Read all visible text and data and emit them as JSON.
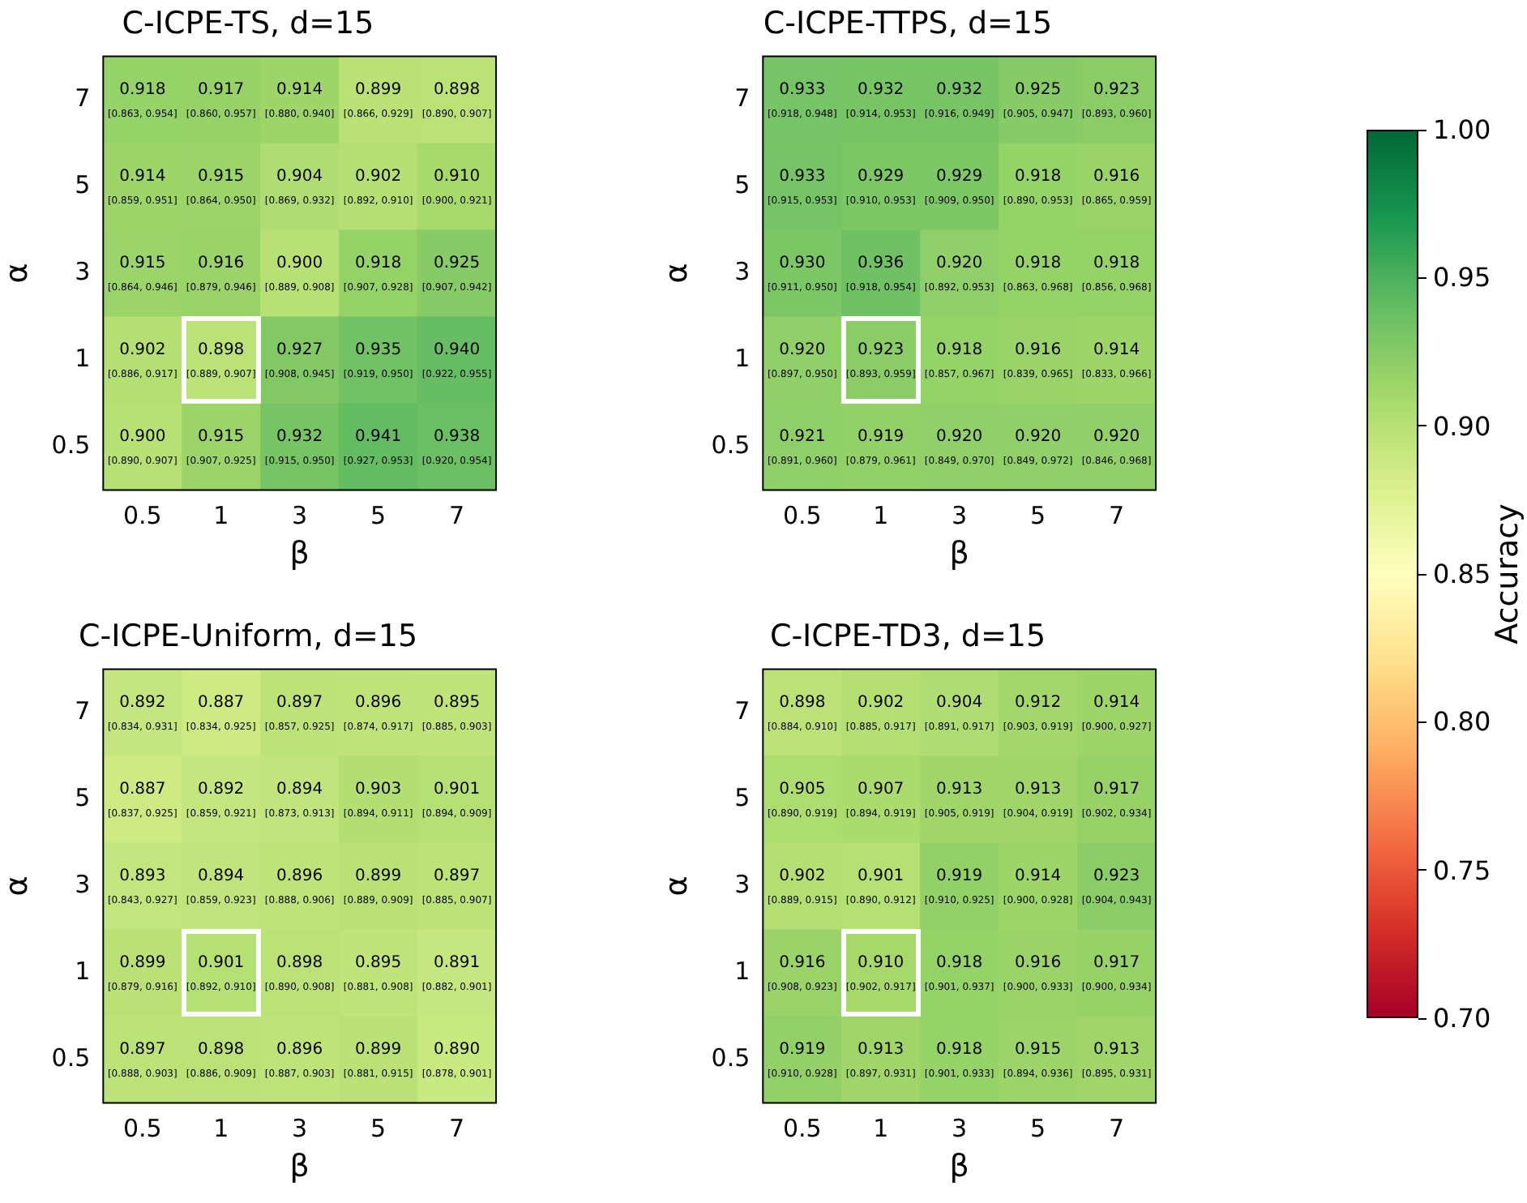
{
  "chart_data": [
    {
      "type": "heatmap",
      "title": "C-ICPE-TS, d=15",
      "xlabel": "β",
      "ylabel": "α",
      "categories": [
        "0.5",
        "1",
        "3",
        "5",
        "7"
      ],
      "y_categories": [
        "7",
        "5",
        "3",
        "1",
        "0.5"
      ],
      "clim": [
        0.7,
        1.0
      ],
      "cticks": [
        {
          "value": 0.7,
          "label": "0.70"
        },
        0.75,
        {
          "value": 0.8,
          "label": "0.80"
        },
        0.85,
        {
          "value": 0.9,
          "label": "0.90"
        },
        0.95,
        {
          "value": 1.0,
          "label": "1.00"
        }
      ],
      "clabel": "Accuracy",
      "cells": [
        [
          0.918,
          0.917,
          0.914,
          0.899,
          0.898
        ],
        [
          0.914,
          0.915,
          0.904,
          0.902,
          0.91
        ],
        [
          0.915,
          0.916,
          0.9,
          0.918,
          0.925
        ],
        [
          0.902,
          0.898,
          0.927,
          0.935,
          0.94
        ],
        [
          0.9,
          0.915,
          0.932,
          0.941,
          0.938
        ]
      ],
      "cell_labels": [
        [
          "0.918",
          "0.917",
          "0.914",
          "0.899",
          "0.898"
        ],
        [
          "0.914",
          "0.915",
          "0.904",
          "0.902",
          "0.910"
        ],
        [
          "0.915",
          "0.916",
          "0.900",
          "0.918",
          "0.925"
        ],
        [
          "0.902",
          "0.898",
          "0.927",
          "0.935",
          "0.940"
        ],
        [
          "0.900",
          "0.915",
          "0.932",
          "0.941",
          "0.938"
        ]
      ],
      "annotations": [
        "[0.863, 0.954]",
        "[0.860, 0.957]",
        "[0.880, 0.940]",
        "[0.866, 0.929]",
        "[0.890, 0.907]",
        "[0.859, 0.951]",
        "[0.864, 0.950]",
        "[0.869, 0.932]",
        "[0.892, 0.910]",
        "[0.900, 0.921]",
        "[0.864, 0.946]",
        "[0.879, 0.946]",
        "[0.889, 0.908]",
        "[0.907, 0.928]",
        "[0.907, 0.942]",
        "[0.886, 0.917]",
        "[0.889, 0.907]",
        "[0.908, 0.945]",
        "[0.919, 0.950]",
        "[0.922, 0.955]",
        "[0.890, 0.907]",
        "[0.907, 0.925]",
        "[0.915, 0.950]",
        "[0.927, 0.953]",
        "[0.920, 0.954]"
      ]
    },
    {
      "type": "heatmap",
      "title": "C-ICPE-TTPS, d=15",
      "xlabel": "β",
      "ylabel": "α",
      "categories": [
        "0.5",
        "1",
        "3",
        "5",
        "7"
      ],
      "y_categories": [
        "7",
        "5",
        "3",
        "1",
        "0.5"
      ],
      "cells": [
        [
          0.933,
          0.932,
          0.932,
          0.925,
          0.923
        ],
        [
          0.933,
          0.929,
          0.929,
          0.918,
          0.916
        ],
        [
          0.93,
          0.936,
          0.92,
          0.918,
          0.918
        ],
        [
          0.92,
          0.923,
          0.918,
          0.916,
          0.914
        ],
        [
          0.921,
          0.919,
          0.92,
          0.92,
          0.92
        ]
      ],
      "cell_labels": [
        [
          "0.933",
          "0.932",
          "0.932",
          "0.925",
          "0.923"
        ],
        [
          "0.933",
          "0.929",
          "0.929",
          "0.918",
          "0.916"
        ],
        [
          "0.930",
          "0.936",
          "0.920",
          "0.918",
          "0.918"
        ],
        [
          "0.920",
          "0.923",
          "0.918",
          "0.916",
          "0.914"
        ],
        [
          "0.921",
          "0.919",
          "0.920",
          "0.920",
          "0.920"
        ]
      ],
      "annotations": [
        "[0.918, 0.948]",
        "[0.914, 0.953]",
        "[0.916, 0.949]",
        "[0.905, 0.947]",
        "[0.893, 0.960]",
        "[0.915, 0.953]",
        "[0.910, 0.953]",
        "[0.909, 0.950]",
        "[0.890, 0.953]",
        "[0.865, 0.959]",
        "[0.911, 0.950]",
        "[0.918, 0.954]",
        "[0.892, 0.953]",
        "[0.863, 0.968]",
        "[0.856, 0.968]",
        "[0.897, 0.950]",
        "[0.893, 0.959]",
        "[0.857, 0.967]",
        "[0.839, 0.965]",
        "[0.833, 0.966]",
        "[0.891, 0.960]",
        "[0.879, 0.961]",
        "[0.849, 0.970]",
        "[0.849, 0.972]",
        "[0.846, 0.968]"
      ]
    },
    {
      "type": "heatmap",
      "title": "C-ICPE-Uniform, d=15",
      "xlabel": "β",
      "ylabel": "α",
      "categories": [
        "0.5",
        "1",
        "3",
        "5",
        "7"
      ],
      "y_categories": [
        "7",
        "5",
        "3",
        "1",
        "0.5"
      ],
      "cells": [
        [
          0.892,
          0.887,
          0.897,
          0.896,
          0.895
        ],
        [
          0.887,
          0.892,
          0.894,
          0.903,
          0.901
        ],
        [
          0.893,
          0.894,
          0.896,
          0.899,
          0.897
        ],
        [
          0.899,
          0.901,
          0.898,
          0.895,
          0.891
        ],
        [
          0.897,
          0.898,
          0.896,
          0.899,
          0.89
        ]
      ],
      "cell_labels": [
        [
          "0.892",
          "0.887",
          "0.897",
          "0.896",
          "0.895"
        ],
        [
          "0.887",
          "0.892",
          "0.894",
          "0.903",
          "0.901"
        ],
        [
          "0.893",
          "0.894",
          "0.896",
          "0.899",
          "0.897"
        ],
        [
          "0.899",
          "0.901",
          "0.898",
          "0.895",
          "0.891"
        ],
        [
          "0.897",
          "0.898",
          "0.896",
          "0.899",
          "0.890"
        ]
      ],
      "annotations": [
        "[0.834, 0.931]",
        "[0.834, 0.925]",
        "[0.857, 0.925]",
        "[0.874, 0.917]",
        "[0.885, 0.903]",
        "[0.837, 0.925]",
        "[0.859, 0.921]",
        "[0.873, 0.913]",
        "[0.894, 0.911]",
        "[0.894, 0.909]",
        "[0.843, 0.927]",
        "[0.859, 0.923]",
        "[0.888, 0.906]",
        "[0.889, 0.909]",
        "[0.885, 0.907]",
        "[0.879, 0.916]",
        "[0.892, 0.910]",
        "[0.890, 0.908]",
        "[0.881, 0.908]",
        "[0.882, 0.901]",
        "[0.888, 0.903]",
        "[0.886, 0.909]",
        "[0.887, 0.903]",
        "[0.881, 0.915]",
        "[0.878, 0.901]"
      ]
    },
    {
      "type": "heatmap",
      "title": "C-ICPE-TD3, d=15",
      "xlabel": "β",
      "ylabel": "α",
      "categories": [
        "0.5",
        "1",
        "3",
        "5",
        "7"
      ],
      "y_categories": [
        "7",
        "5",
        "3",
        "1",
        "0.5"
      ],
      "cells": [
        [
          0.898,
          0.902,
          0.904,
          0.912,
          0.914
        ],
        [
          0.905,
          0.907,
          0.913,
          0.913,
          0.917
        ],
        [
          0.902,
          0.901,
          0.919,
          0.914,
          0.923
        ],
        [
          0.916,
          0.91,
          0.918,
          0.916,
          0.917
        ],
        [
          0.919,
          0.913,
          0.918,
          0.915,
          0.913
        ]
      ],
      "cell_labels": [
        [
          "0.898",
          "0.902",
          "0.904",
          "0.912",
          "0.914"
        ],
        [
          "0.905",
          "0.907",
          "0.913",
          "0.913",
          "0.917"
        ],
        [
          "0.902",
          "0.901",
          "0.919",
          "0.914",
          "0.923"
        ],
        [
          "0.916",
          "0.910",
          "0.918",
          "0.916",
          "0.917"
        ],
        [
          "0.919",
          "0.913",
          "0.918",
          "0.915",
          "0.913"
        ]
      ],
      "annotations": [
        "[0.884, 0.910]",
        "[0.885, 0.917]",
        "[0.891, 0.917]",
        "[0.903, 0.919]",
        "[0.900, 0.927]",
        "[0.890, 0.919]",
        "[0.894, 0.919]",
        "[0.905, 0.919]",
        "[0.904, 0.919]",
        "[0.902, 0.934]",
        "[0.889, 0.915]",
        "[0.890, 0.912]",
        "[0.910, 0.925]",
        "[0.900, 0.928]",
        "[0.904, 0.943]",
        "[0.908, 0.923]",
        "[0.902, 0.917]",
        "[0.901, 0.937]",
        "[0.900, 0.933]",
        "[0.900, 0.934]",
        "[0.910, 0.928]",
        "[0.897, 0.931]",
        "[0.901, 0.933]",
        "[0.894, 0.936]",
        "[0.895, 0.931]"
      ]
    }
  ]
}
